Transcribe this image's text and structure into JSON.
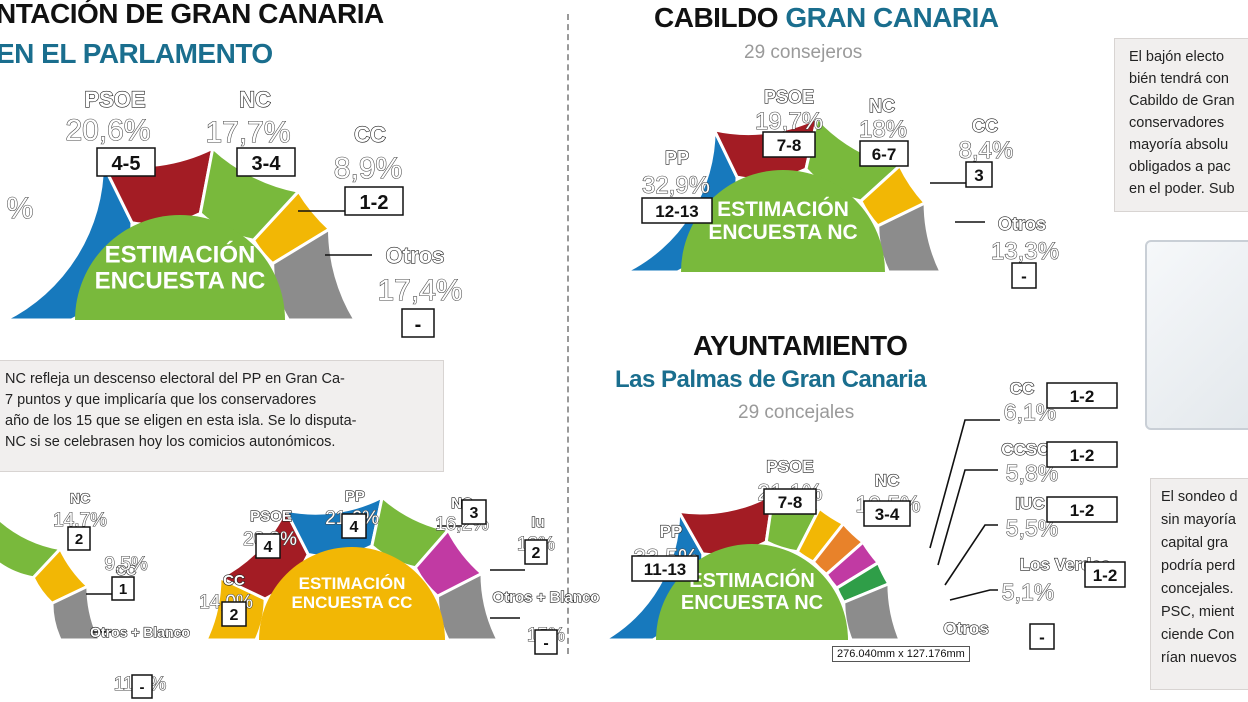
{
  "header_left": {
    "title_line1": "NTACIÓN DE GRAN CANARIA",
    "title_line2": "EN EL PARLAMENTO"
  },
  "header_cabildo": {
    "title_black": "CABILDO",
    "title_blue": "GRAN CANARIA",
    "subtitle": "29 consejeros"
  },
  "header_ayto": {
    "title": "AYUNTAMIENTO",
    "subtitle_blue": "Las Palmas de Gran Canaria",
    "subtitle": "29 concejales"
  },
  "panel_left": {
    "lines": [
      "NC refleja un descenso electoral del PP en Gran Ca-",
      "7 puntos y que implicaría que los conservadores",
      "año de los 15 que se eligen en esta isla. Se lo disputa-",
      "NC si se celebrasen hoy los comicios autonómicos."
    ]
  },
  "panel_right_top": {
    "lines": [
      "El bajón electo",
      "bién tendrá con",
      "Cabildo de Gran",
      "conservadores",
      "mayoría absolu",
      "obligados a pac",
      "en el poder. Sub"
    ]
  },
  "panel_right_bottom": {
    "lines": [
      "El sondeo d",
      "sin mayoría",
      "capital gra",
      "podría perd",
      "concejales.",
      "PSC, mient",
      "ciende Con",
      "rían nuevos"
    ]
  },
  "measure_readout": "276.040mm x 127.176mm",
  "colors": {
    "PP": "#1779bd",
    "PSOE": "#a31c24",
    "NC": "#79b93c",
    "CC": "#f2b705",
    "Otros": "#8c8c8c",
    "CCSCa": "#e8822a",
    "IUC": "#c13aa3",
    "LosVerdes": "#2f9e48",
    "estimacion_nc_bg": "#79b93c",
    "estimacion_cc_bg": "#f2b705",
    "title_blue": "#1a6e8e"
  },
  "chart_data": [
    {
      "type": "pie",
      "subtype": "hemicycle",
      "title": "EN EL PARLAMENTO",
      "inner_label": [
        "ESTIMACIÓN",
        "ENCUESTA NC"
      ],
      "series": [
        {
          "name": "PP",
          "label": "",
          "pct_label": "%",
          "value": 35.4,
          "seats": ""
        },
        {
          "name": "PSOE",
          "label": "PSOE",
          "pct_label": "20,6%",
          "value": 20.6,
          "seats": "4-5"
        },
        {
          "name": "NC",
          "label": "NC",
          "pct_label": "17,7%",
          "value": 17.7,
          "seats": "3-4"
        },
        {
          "name": "CC",
          "label": "CC",
          "pct_label": "8,9%",
          "value": 8.9,
          "seats": "1-2"
        },
        {
          "name": "Otros",
          "label": "Otros",
          "pct_label": "17,4%",
          "value": 17.4,
          "seats": "-"
        }
      ]
    },
    {
      "type": "pie",
      "subtype": "hemicycle",
      "title": "CABILDO GRAN CANARIA",
      "subtitle": "29 consejeros",
      "inner_label": [
        "ESTIMACIÓN",
        "ENCUESTA NC"
      ],
      "series": [
        {
          "name": "PP",
          "label": "PP",
          "pct_label": "32,9%",
          "value": 32.9,
          "seats": "12-13"
        },
        {
          "name": "PSOE",
          "label": "PSOE",
          "pct_label": "19,7%",
          "value": 19.7,
          "seats": "7-8"
        },
        {
          "name": "NC",
          "label": "NC",
          "pct_label": "18%",
          "value": 18.0,
          "seats": "6-7"
        },
        {
          "name": "CC",
          "label": "CC",
          "pct_label": "8,4%",
          "value": 8.4,
          "seats": "3"
        },
        {
          "name": "Otros",
          "label": "Otros",
          "pct_label": "13,3%",
          "value": 13.3,
          "seats": "-"
        }
      ]
    },
    {
      "type": "pie",
      "subtype": "hemicycle",
      "inner_label": [],
      "series": [
        {
          "name": "PP",
          "label": "",
          "pct_label": "",
          "value": 44.3,
          "seats": ""
        },
        {
          "name": "NC",
          "label": "NC",
          "pct_label": "14,7%",
          "value": 14.7,
          "seats": "2"
        },
        {
          "name": "CC",
          "label": "CC",
          "pct_label": "9,5%",
          "value": 9.5,
          "seats": "1"
        },
        {
          "name": "Otros",
          "label": "Otros + Blanco",
          "pct_label": "11,3%",
          "value": 11.3,
          "seats": "-"
        }
      ]
    },
    {
      "type": "pie",
      "subtype": "hemicycle",
      "inner_label": [
        "ESTIMACIÓN",
        "ENCUESTA CC"
      ],
      "series": [
        {
          "name": "CC",
          "label": "CC",
          "pct_label": "14,0%",
          "value": 14.0,
          "seats": "2"
        },
        {
          "name": "PSOE",
          "label": "PSOE",
          "pct_label": "20,8%",
          "value": 20.8,
          "seats": "4"
        },
        {
          "name": "PP",
          "label": "PP",
          "pct_label": "21,6%",
          "value": 21.6,
          "seats": "4"
        },
        {
          "name": "NC",
          "label": "NC",
          "pct_label": "16,2%",
          "value": 16.2,
          "seats": "3"
        },
        {
          "name": "IUC",
          "label": "Iu",
          "pct_label": "12%",
          "value": 12.0,
          "seats": "2"
        },
        {
          "name": "Otros",
          "label": "Otros + Blanco",
          "pct_label": "15%",
          "value": 15.0,
          "seats": "-"
        }
      ]
    },
    {
      "type": "pie",
      "subtype": "hemicycle",
      "title": "AYUNTAMIENTO Las Palmas de Gran Canaria",
      "subtitle": "29 concejales",
      "inner_label": [
        "ESTIMACIÓN",
        "ENCUESTA NC"
      ],
      "series": [
        {
          "name": "PP",
          "label": "PP",
          "pct_label": "33,5%",
          "value": 33.5,
          "seats": "11-13"
        },
        {
          "name": "PSOE",
          "label": "PSOE",
          "pct_label": "21,1%",
          "value": 21.1,
          "seats": "7-8"
        },
        {
          "name": "NC",
          "label": "NC",
          "pct_label": "10,5%",
          "value": 10.5,
          "seats": "3-4"
        },
        {
          "name": "CC",
          "label": "CC",
          "pct_label": "6,1%",
          "value": 6.1,
          "seats": "1-2"
        },
        {
          "name": "CCSCa",
          "label": "CCSCa",
          "pct_label": "5,8%",
          "value": 5.8,
          "seats": "1-2"
        },
        {
          "name": "IUC",
          "label": "IUC",
          "pct_label": "5,5%",
          "value": 5.5,
          "seats": "1-2"
        },
        {
          "name": "LosVerdes",
          "label": "Los Verdes",
          "pct_label": "5,1%",
          "value": 5.1,
          "seats": "1-2"
        },
        {
          "name": "Otros",
          "label": "Otros",
          "pct_label": "",
          "value": 12.4,
          "seats": "-"
        }
      ]
    }
  ]
}
